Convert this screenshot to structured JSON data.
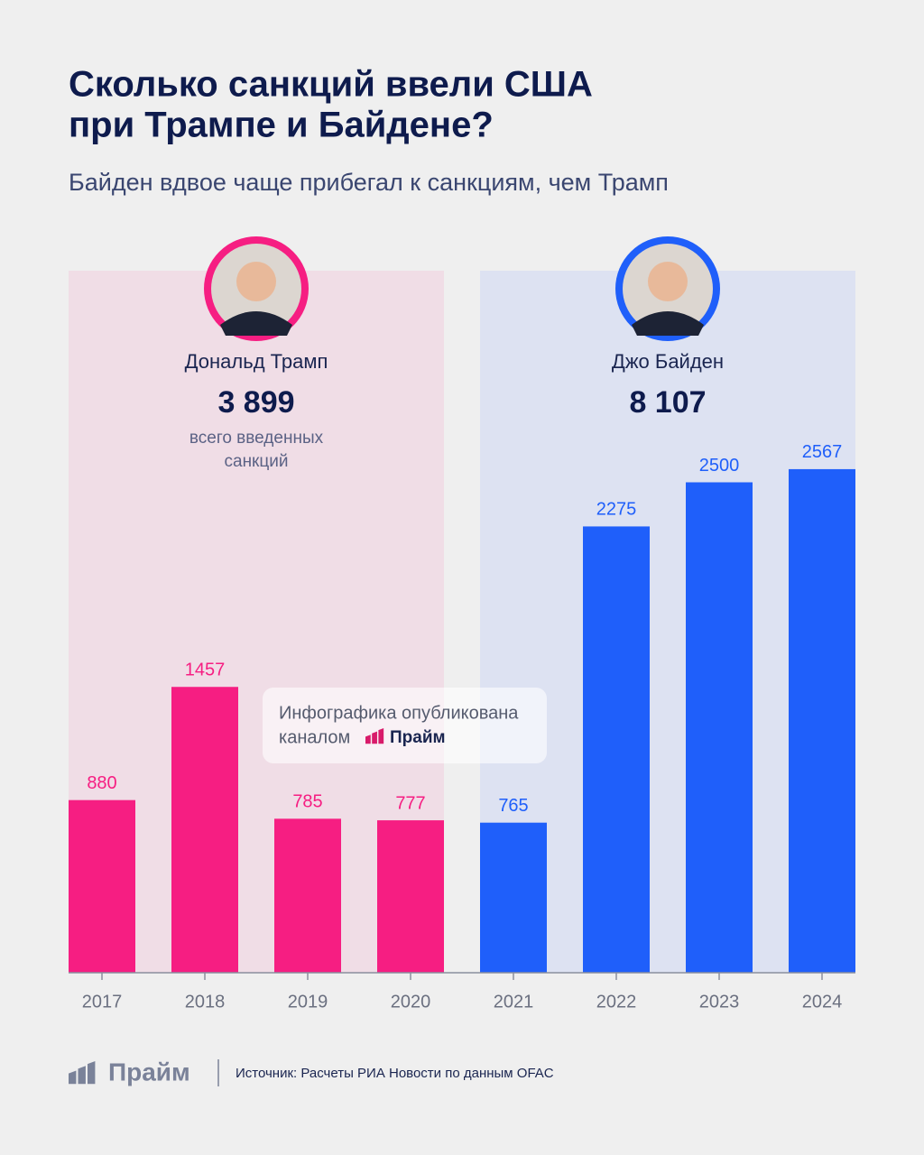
{
  "chart_data": {
    "type": "bar",
    "title": [
      "Сколько санкций ввели США",
      "при Трампе и Байдене?"
    ],
    "subtitle": "Байден вдвое чаще прибегал к санкциям, чем Трамп",
    "categories": [
      "2017",
      "2018",
      "2019",
      "2020",
      "2021",
      "2022",
      "2023",
      "2024"
    ],
    "series": [
      {
        "name": "Дональд Трамп",
        "color": "#f61e82",
        "panel_color": "#f0dde6",
        "values": [
          880,
          1457,
          785,
          777,
          null,
          null,
          null,
          null
        ],
        "total": {
          "value": 3899,
          "label": "3 899"
        },
        "note": [
          "всего введенных",
          "санкций"
        ]
      },
      {
        "name": "Джо Байден",
        "color": "#1f5ffa",
        "panel_color": "#dde2f2",
        "values": [
          null,
          null,
          null,
          null,
          765,
          2275,
          2500,
          2567
        ],
        "total": {
          "value": 8107,
          "label": "8 107"
        }
      }
    ]
  },
  "watermark": {
    "line1": "Инфографика опубликована",
    "line2": "каналом",
    "brand": "Прайм"
  },
  "footer": {
    "brand": "Прайм",
    "source": "Источник: Расчеты РИА Новости по данным OFAC"
  }
}
